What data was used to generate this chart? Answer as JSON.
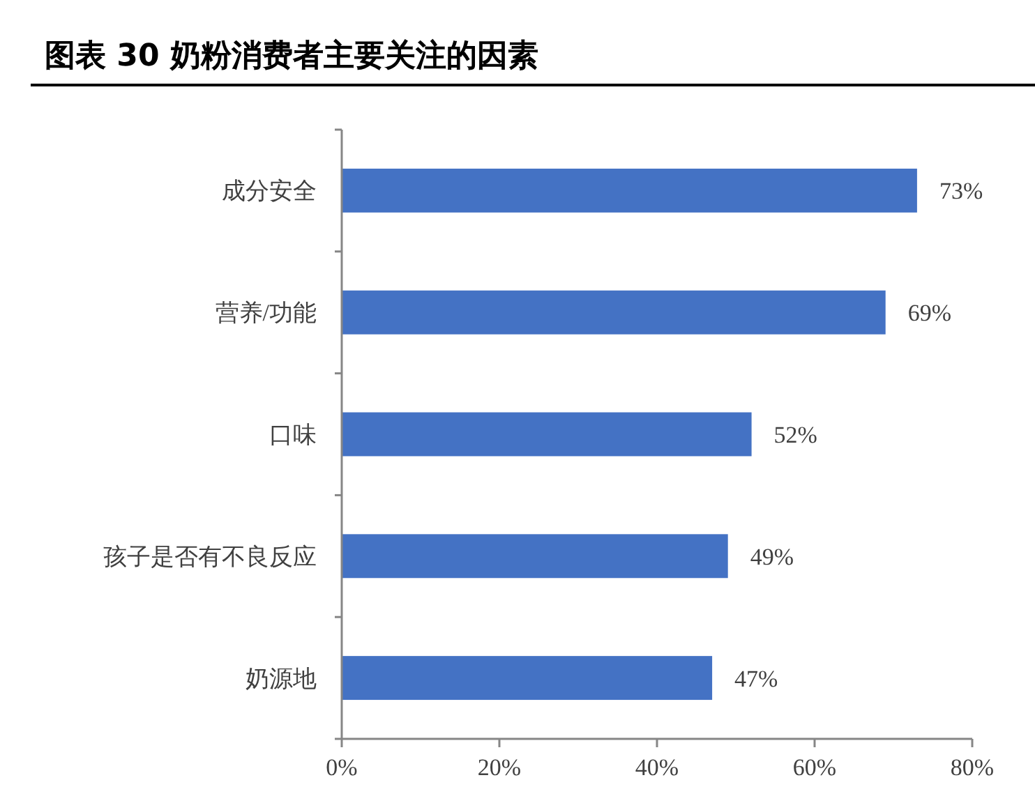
{
  "chart_data": {
    "type": "bar",
    "orientation": "horizontal",
    "title": "图表 30 奶粉消费者主要关注的因素",
    "categories": [
      "成分安全",
      "营养/功能",
      "口味",
      "孩子是否有不良反应",
      "奶源地"
    ],
    "values": [
      73,
      69,
      52,
      49,
      47
    ],
    "value_labels": [
      "73%",
      "69%",
      "52%",
      "49%",
      "47%"
    ],
    "color": "#4472c4",
    "xlim": [
      0,
      80
    ],
    "xticks": [
      {
        "value": 0,
        "label": "0%"
      },
      {
        "value": 20,
        "label": "20%"
      },
      {
        "value": 40,
        "label": "40%"
      },
      {
        "value": 60,
        "label": "60%"
      },
      {
        "value": 80,
        "label": "80%"
      }
    ]
  }
}
